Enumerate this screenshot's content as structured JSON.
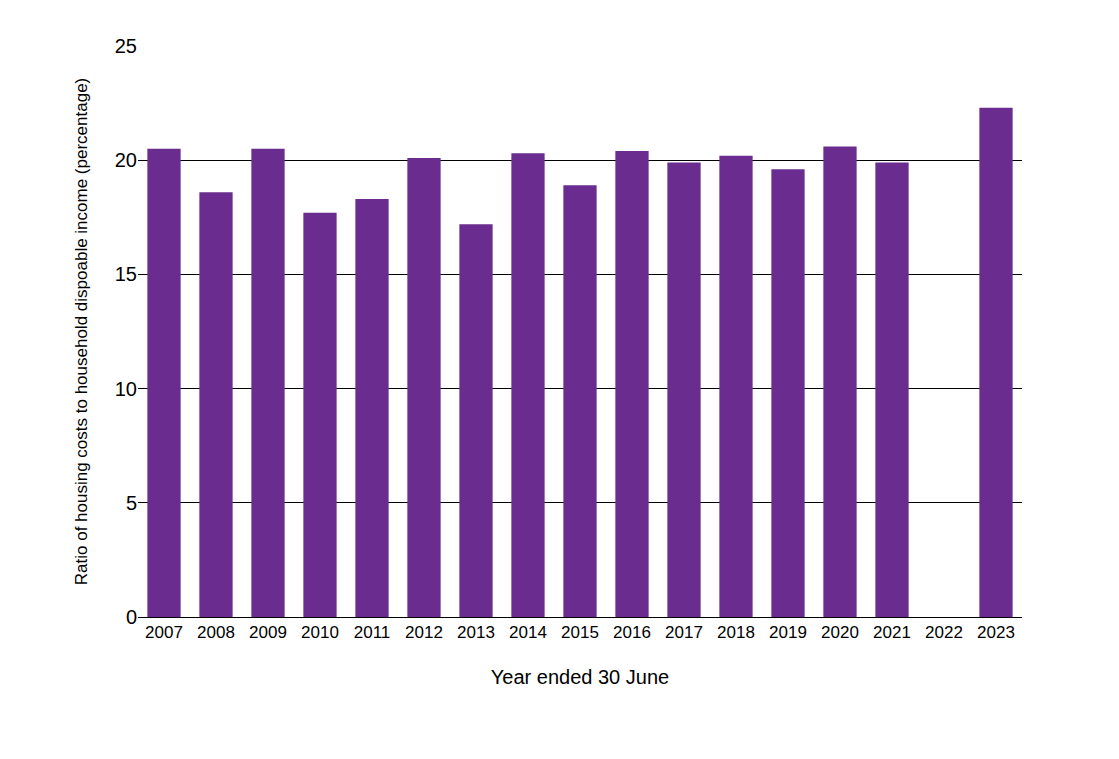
{
  "chart_data": {
    "type": "bar",
    "x_label": "Year ended 30 June",
    "y_label": "Ratio of housing costs to household dispoable income (percentage)",
    "categories": [
      "2007",
      "2008",
      "2009",
      "2010",
      "2011",
      "2012",
      "2013",
      "2014",
      "2015",
      "2016",
      "2017",
      "2018",
      "2019",
      "2020",
      "2021",
      "2022",
      "2023"
    ],
    "values": [
      20.5,
      18.6,
      20.5,
      17.7,
      18.3,
      20.1,
      17.2,
      20.3,
      18.9,
      20.4,
      19.9,
      20.2,
      19.6,
      20.6,
      19.9,
      null,
      22.3
    ],
    "color": "#6a2d8f",
    "ylim": [
      0,
      25
    ],
    "yticks": [
      0,
      5,
      10,
      15,
      20,
      25
    ],
    "grid": true
  }
}
